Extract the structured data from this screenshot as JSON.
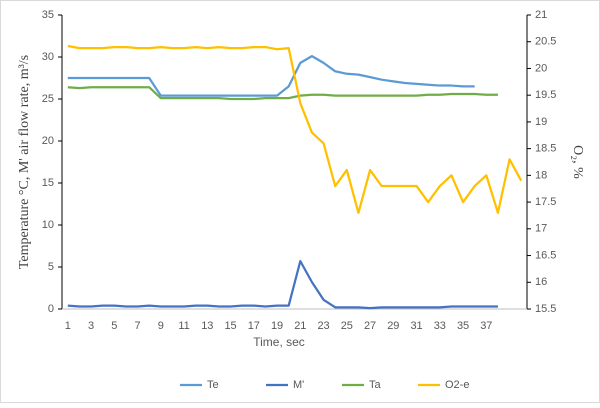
{
  "chart_data": {
    "type": "line",
    "x_label": "Time, sec",
    "y_label": "Temperature °C, M' air flow rate, m³/s",
    "y2_label": "O₂, %",
    "categories": [
      1,
      null,
      3,
      null,
      5,
      null,
      7,
      null,
      9,
      null,
      11,
      null,
      13,
      null,
      15,
      null,
      17,
      null,
      19,
      null,
      21,
      null,
      23,
      null,
      25,
      null,
      27,
      null,
      29,
      null,
      31,
      null,
      33,
      null,
      35,
      null,
      37,
      null,
      null,
      null
    ],
    "ylim": [
      0,
      35
    ],
    "yticks": [
      0,
      5,
      10,
      15,
      20,
      25,
      30,
      35
    ],
    "y2lim": [
      15.5,
      21
    ],
    "y2ticks": [
      15.5,
      16,
      16.5,
      17,
      17.5,
      18,
      18.5,
      19,
      19.5,
      20,
      20.5,
      21
    ],
    "legend": "bottom",
    "series": [
      {
        "name": "Te",
        "color": "#5b9bd5",
        "values": [
          27.5,
          27.5,
          27.5,
          27.5,
          27.5,
          27.5,
          27.5,
          27.5,
          25.4,
          25.4,
          25.4,
          25.4,
          25.4,
          25.4,
          25.4,
          25.4,
          25.4,
          25.4,
          25.4,
          26.5,
          29.3,
          30.1,
          29.3,
          28.3,
          28.0,
          27.9,
          27.6,
          27.3,
          27.1,
          26.9,
          26.8,
          26.7,
          26.6,
          26.6,
          26.5,
          26.5,
          null,
          null,
          null,
          null
        ]
      },
      {
        "name": "M'",
        "color": "#4472c4",
        "values": [
          0.4,
          0.3,
          0.3,
          0.4,
          0.4,
          0.3,
          0.3,
          0.4,
          0.3,
          0.3,
          0.3,
          0.4,
          0.4,
          0.3,
          0.3,
          0.4,
          0.4,
          0.3,
          0.4,
          0.4,
          5.7,
          3.2,
          1.1,
          0.2,
          0.2,
          0.2,
          0.1,
          0.2,
          0.2,
          0.2,
          0.2,
          0.2,
          0.2,
          0.3,
          0.3,
          0.3,
          0.3,
          0.3,
          null,
          null
        ]
      },
      {
        "name": "Ta",
        "color": "#70ad47",
        "values": [
          26.4,
          26.3,
          26.4,
          26.4,
          26.4,
          26.4,
          26.4,
          26.4,
          25.1,
          25.1,
          25.1,
          25.1,
          25.1,
          25.1,
          25.0,
          25.0,
          25.0,
          25.1,
          25.1,
          25.1,
          25.4,
          25.5,
          25.5,
          25.4,
          25.4,
          25.4,
          25.4,
          25.4,
          25.4,
          25.4,
          25.4,
          25.5,
          25.5,
          25.6,
          25.6,
          25.6,
          25.5,
          25.5,
          null,
          null
        ]
      },
      {
        "name": "O2-e",
        "color": "#ffc000",
        "axis": "y2",
        "values": [
          20.42,
          20.38,
          20.38,
          20.38,
          20.4,
          20.4,
          20.38,
          20.38,
          20.4,
          20.38,
          20.38,
          20.4,
          20.38,
          20.4,
          20.38,
          20.38,
          20.4,
          20.4,
          20.36,
          20.38,
          19.35,
          18.8,
          18.6,
          17.8,
          18.1,
          17.3,
          18.1,
          17.8,
          17.8,
          17.8,
          17.8,
          17.5,
          17.8,
          18.0,
          17.5,
          17.8,
          18.0,
          17.3,
          18.3,
          17.9
        ]
      }
    ]
  }
}
